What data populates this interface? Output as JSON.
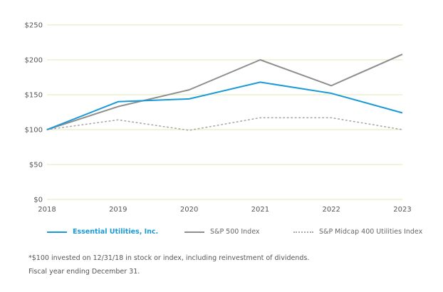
{
  "chart_data": {
    "type": "line",
    "title": "",
    "xlabel": "",
    "ylabel": "",
    "x": [
      "2018",
      "2019",
      "2020",
      "2021",
      "2022",
      "2023"
    ],
    "yticks": [
      "$0",
      "$50",
      "$100",
      "$150",
      "$200",
      "$250"
    ],
    "ytick_values": [
      0,
      50,
      100,
      150,
      200,
      250
    ],
    "ylim": [
      0,
      250
    ],
    "grid": true,
    "legend_position": "bottom",
    "series": [
      {
        "name": "Essential Utilities, Inc.",
        "values": [
          100,
          140,
          144,
          168,
          152,
          124
        ],
        "color": "#1a9ad6",
        "style": "solid"
      },
      {
        "name": "S&P 500 Index",
        "values": [
          100,
          133,
          157,
          200,
          163,
          208
        ],
        "color": "#8e8e8e",
        "style": "solid"
      },
      {
        "name": "S&P Midcap 400 Utilities Index",
        "values": [
          100,
          114,
          99,
          117,
          117,
          100
        ],
        "color": "#a8a8a8",
        "style": "dotted"
      }
    ],
    "gridline_color": "#e3e9b8"
  },
  "footnotes": [
    "*$100 invested on 12/31/18 in stock or index, including reinvestment of dividends.",
    "Fiscal year ending December 31."
  ]
}
